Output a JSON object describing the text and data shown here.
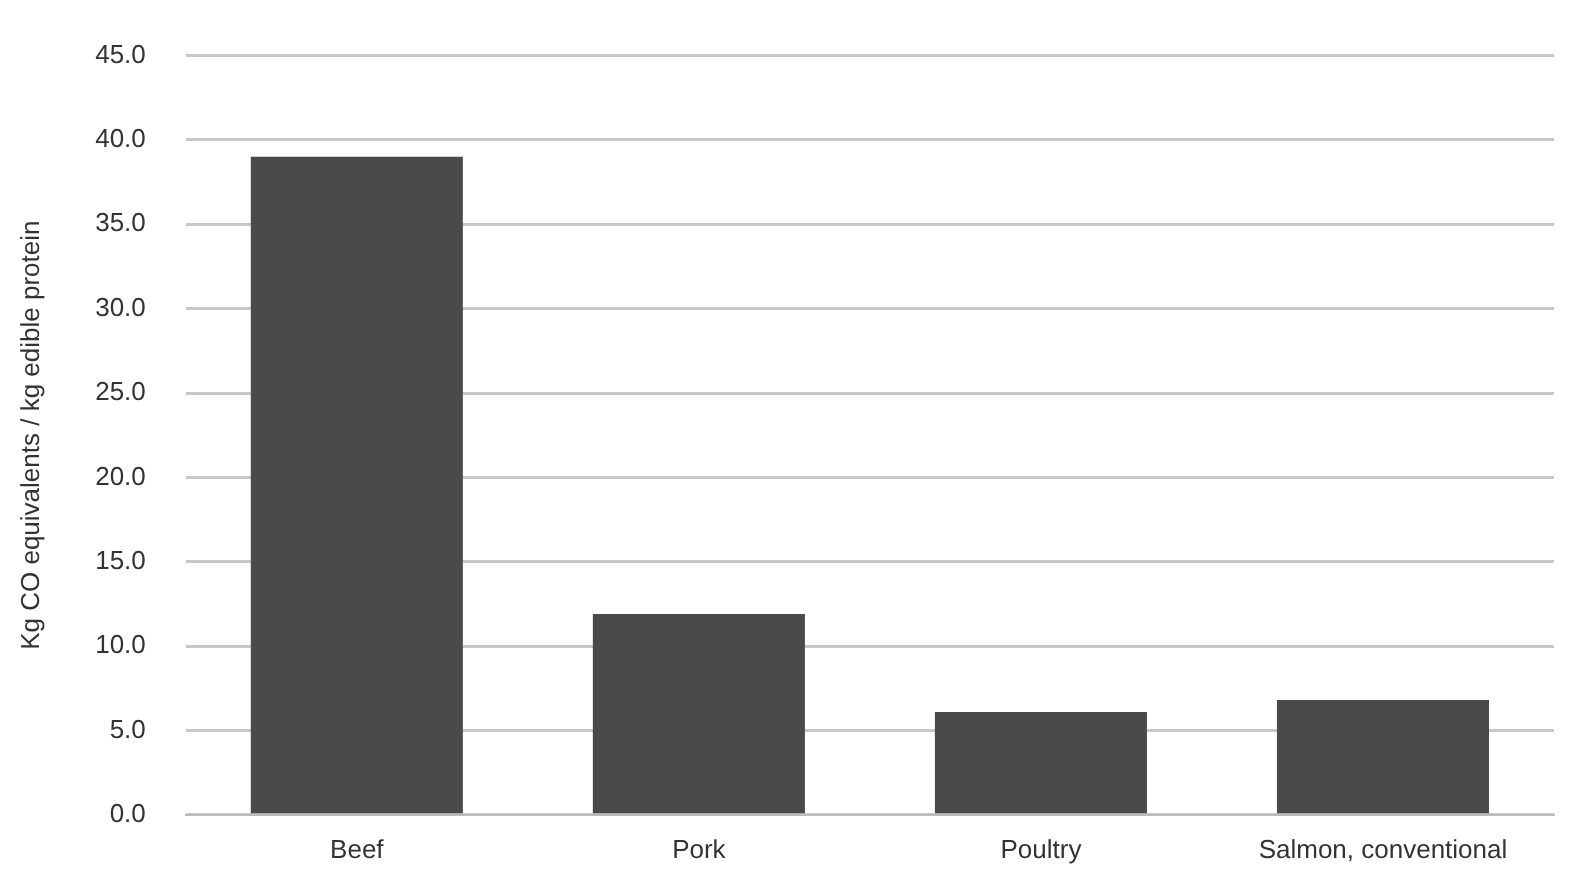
{
  "chart_data": {
    "type": "bar",
    "ylabel": "Kg CO equivalents / kg edible protein",
    "categories": [
      "Beef",
      "Pork",
      "Poultry",
      "Salmon, conventional"
    ],
    "values": [
      39.0,
      11.9,
      6.1,
      6.8
    ],
    "color": "#4a4a4a",
    "ylim": [
      0,
      45
    ],
    "yticks": [
      {
        "value": 0,
        "label": "0.0"
      },
      {
        "value": 5,
        "label": "5.0"
      },
      {
        "value": 10,
        "label": "10.0"
      },
      {
        "value": 15,
        "label": "15.0"
      },
      {
        "value": 20,
        "label": "20.0"
      },
      {
        "value": 25,
        "label": "25.0"
      },
      {
        "value": 30,
        "label": "30.0"
      },
      {
        "value": 35,
        "label": "35.0"
      },
      {
        "value": 40,
        "label": "40.0"
      },
      {
        "value": 45,
        "label": "45.0"
      }
    ],
    "grid": "y"
  }
}
